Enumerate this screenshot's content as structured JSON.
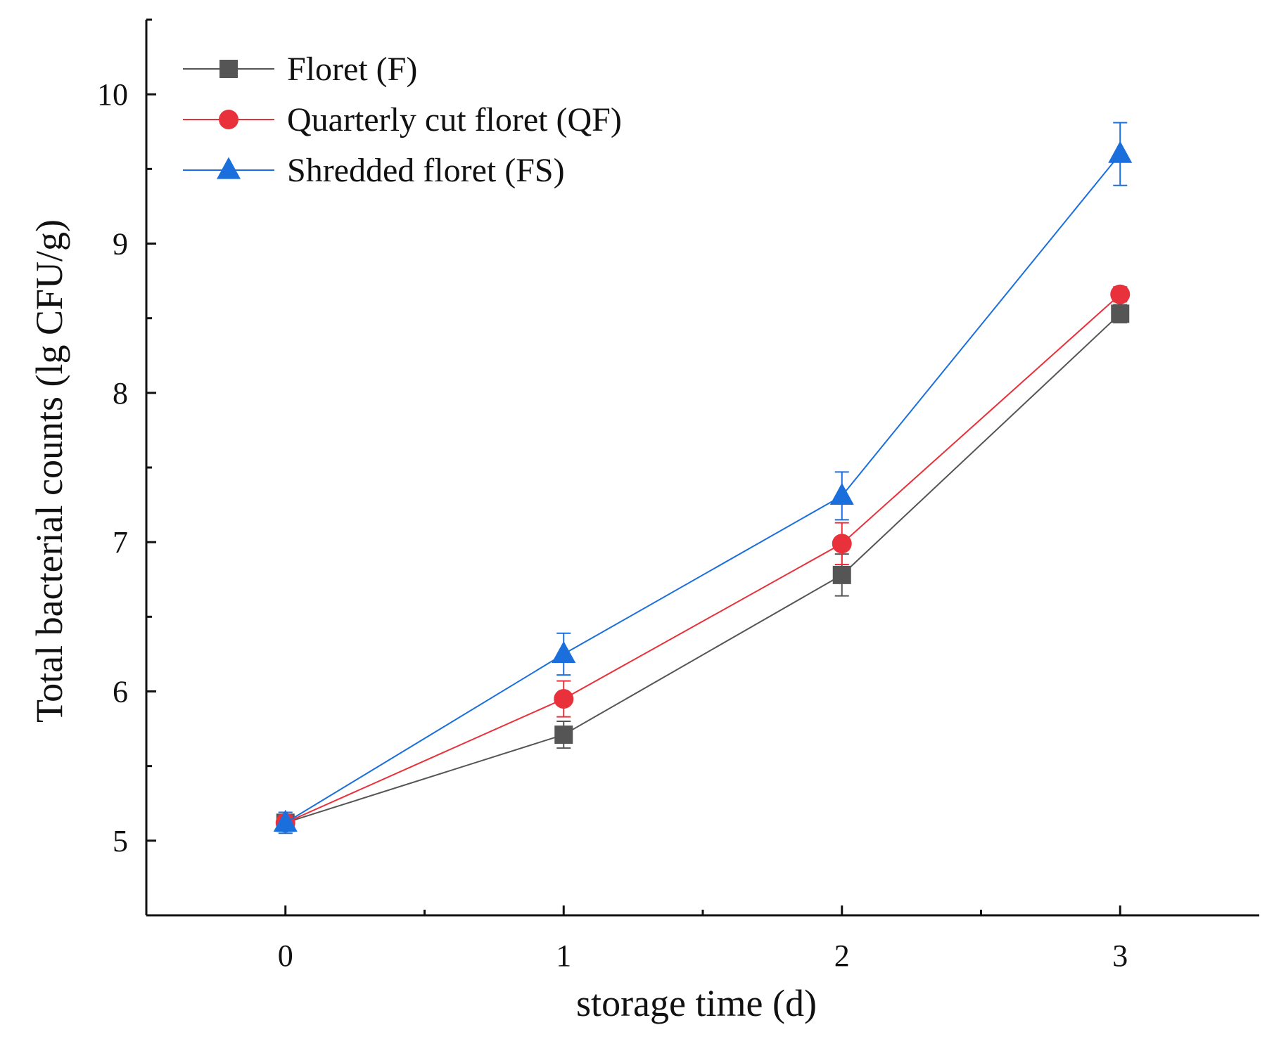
{
  "chart_data": {
    "type": "line",
    "title": "",
    "xlabel": "storage time (d)",
    "ylabel": "Total bacterial counts (lg CFU/g)",
    "x": [
      0,
      1,
      2,
      3
    ],
    "xlim": [
      -0.5,
      3.5
    ],
    "ylim": [
      4.5,
      10.5
    ],
    "xticks": [
      "0",
      "1",
      "2",
      "3"
    ],
    "yticks": [
      "5",
      "6",
      "7",
      "8",
      "9",
      "10"
    ],
    "grid": false,
    "legend_position": "top-left",
    "series": [
      {
        "name": "Floret (F)",
        "marker": "square",
        "color": "#555555",
        "values": [
          5.12,
          5.71,
          6.78,
          8.53
        ],
        "errors": [
          0.05,
          0.09,
          0.14,
          0.06
        ]
      },
      {
        "name": "Quarterly cut floret (QF)",
        "marker": "circle",
        "color": "#e8313b",
        "values": [
          5.12,
          5.95,
          6.99,
          8.66
        ],
        "errors": [
          0.05,
          0.12,
          0.14,
          0.05
        ]
      },
      {
        "name": "Shredded floret (FS)",
        "marker": "triangle",
        "color": "#1a6fdc",
        "values": [
          5.12,
          6.25,
          7.31,
          9.6
        ],
        "errors": [
          0.07,
          0.14,
          0.16,
          0.21
        ]
      }
    ]
  }
}
